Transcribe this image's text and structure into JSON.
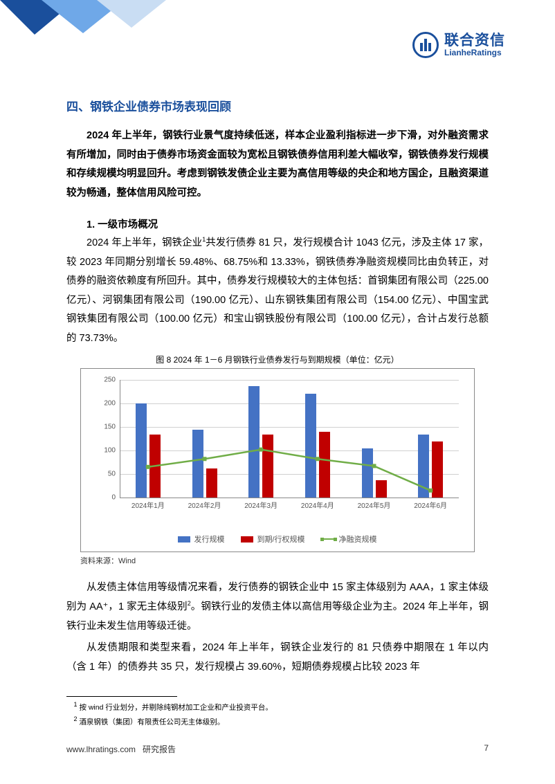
{
  "logo": {
    "cn": "联合资信",
    "en": "LianheRatings"
  },
  "section_title": "四、钢铁企业债券市场表现回顾",
  "intro": "2024 年上半年，钢铁行业景气度持续低迷，样本企业盈利指标进一步下滑，对外融资需求有所增加，同时由于债券市场资金面较为宽松且钢铁债券信用利差大幅收窄，钢铁债券发行规模和存续规模均明显回升。考虑到钢铁发债企业主要为高信用等级的央企和地方国企，且融资渠道较为畅通，整体信用风险可控。",
  "sub1_title": "1.  一级市场概况",
  "para1_a": "2024 年上半年，钢铁企业",
  "para1_b": "共发行债券 81 只，发行规模合计 1043 亿元，涉及主体 17 家，较 2023 年同期分别增长 59.48%、68.75%和 13.33%，钢铁债券净融资规模同比由负转正，对债券的融资依赖度有所回升。其中，债券发行规模较大的主体包括：首钢集团有限公司（225.00 亿元）、河钢集团有限公司（190.00 亿元）、山东钢铁集团有限公司（154.00 亿元）、中国宝武钢铁集团有限公司（100.00 亿元）和宝山钢铁股份有限公司（100.00 亿元），合计占发行总额的 73.73%。",
  "chart": {
    "title": "图 8   2024 年 1－6 月钢铁行业债券发行与到期规模（单位：亿元）",
    "categories": [
      "2024年1月",
      "2024年2月",
      "2024年3月",
      "2024年4月",
      "2024年5月",
      "2024年6月"
    ],
    "issue": [
      200,
      145,
      237,
      222,
      105,
      135
    ],
    "mature": [
      135,
      63,
      135,
      140,
      38,
      120
    ],
    "net": [
      65,
      82,
      102,
      82,
      67,
      15
    ],
    "ylim": [
      0,
      250
    ],
    "ytick_step": 50,
    "colors": {
      "issue": "#4472c4",
      "mature": "#c00000",
      "net": "#70ad47",
      "grid": "#d0d0d0",
      "axis": "#888888"
    },
    "legend": [
      "发行规模",
      "到期/行权规模",
      "净融资规模"
    ],
    "source": "资料来源：Wind"
  },
  "para2_a": "从发债主体信用等级情况来看，发行债券的钢铁企业中 15 家主体级别为 AAA，1 家主体级别为 AA⁺，1 家无主体级别",
  "para2_b": "。钢铁行业的发债主体以高信用等级企业为主。2024 年上半年，钢铁行业未发生信用等级迁徙。",
  "para3": "从发债期限和类型来看，2024 年上半年，钢铁企业发行的 81 只债券中期限在 1 年以内（含 1 年）的债券共 35 只，发行规模占 39.60%，短期债券规模占比较 2023 年",
  "footnotes": {
    "fn1": "按 wind 行业划分，并剔除纯钢材加工企业和产业投资平台。",
    "fn2": "酒泉钢铁（集团）有限责任公司无主体级别。"
  },
  "footer": {
    "site": "www.lhratings.com",
    "label": "研究报告",
    "page": "7"
  }
}
